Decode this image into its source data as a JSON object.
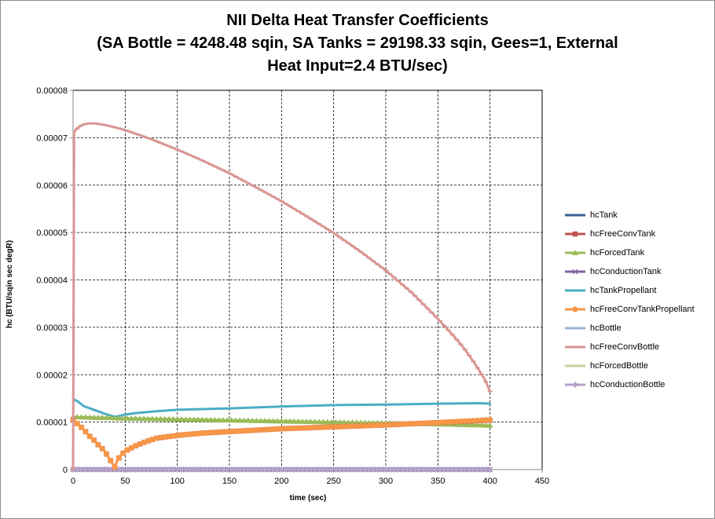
{
  "chart_data": {
    "type": "line",
    "title": [
      "NII Delta Heat Transfer Coefficients",
      "(SA Bottle = 4248.48 sqin, SA Tanks = 29198.33 sqin, Gees=1, External",
      "Heat Input=2.4 BTU/sec)"
    ],
    "xlabel": "time (sec)",
    "ylabel": "hc (BTU/sqin sec degR)",
    "xlim": [
      0,
      450
    ],
    "ylim": [
      0,
      8e-05
    ],
    "xticks": [
      0,
      50,
      100,
      150,
      200,
      250,
      300,
      350,
      400,
      450
    ],
    "yticks": [
      0,
      1e-05,
      2e-05,
      3e-05,
      4e-05,
      5e-05,
      6e-05,
      7e-05,
      8e-05
    ],
    "ytick_labels": [
      "0",
      "0.00001",
      "0.00002",
      "0.00003",
      "0.00004",
      "0.00005",
      "0.00006",
      "0.00007",
      "0.00008"
    ],
    "grid": true,
    "legend_position": "right",
    "series": [
      {
        "name": "hcTank",
        "color": "#376092",
        "marker": "none",
        "x": [
          0,
          400
        ],
        "y": [
          0,
          0
        ]
      },
      {
        "name": "hcFreeConvTank",
        "color": "#c0504d",
        "marker": "square",
        "x": [
          0,
          5,
          10,
          15,
          20,
          25,
          30,
          35,
          38,
          40,
          42,
          45,
          50,
          60,
          70,
          80,
          100,
          125,
          150,
          175,
          200,
          250,
          300,
          350,
          400
        ],
        "y": [
          1.05e-05,
          9.5e-06,
          8.5e-06,
          7.2e-06,
          6.2e-06,
          5e-06,
          4e-06,
          2.2e-06,
          1.2e-06,
          5e-07,
          1.7e-06,
          2.8e-06,
          3.9e-06,
          5e-06,
          5.9e-06,
          6.6e-06,
          7.2e-06,
          7.7e-06,
          8e-06,
          8.3e-06,
          8.6e-06,
          9e-06,
          9.4e-06,
          9.9e-06,
          1.04e-05
        ]
      },
      {
        "name": "hcForcedTank",
        "color": "#9bbb59",
        "marker": "triangle",
        "x": [
          0,
          50,
          100,
          150,
          200,
          250,
          300,
          350,
          400
        ],
        "y": [
          1.11e-05,
          1.08e-05,
          1.06e-05,
          1.04e-05,
          1.02e-05,
          1e-05,
          9.8e-06,
          9.6e-06,
          9.3e-06
        ]
      },
      {
        "name": "hcConductionTank",
        "color": "#8064a2",
        "marker": "x",
        "x": [
          0,
          400
        ],
        "y": [
          0,
          0
        ]
      },
      {
        "name": "hcTankPropellant",
        "color": "#4bacc6",
        "marker": "none",
        "x": [
          0,
          5,
          10,
          20,
          30,
          40,
          50,
          60,
          80,
          100,
          150,
          200,
          250,
          300,
          350,
          390,
          400
        ],
        "y": [
          1.49e-05,
          1.43e-05,
          1.34e-05,
          1.26e-05,
          1.18e-05,
          1.11e-05,
          1.16e-05,
          1.19e-05,
          1.23e-05,
          1.26e-05,
          1.29e-05,
          1.33e-05,
          1.36e-05,
          1.37e-05,
          1.39e-05,
          1.4e-05,
          1.39e-05
        ]
      },
      {
        "name": "hcFreeConvTankPropellant",
        "color": "#f79646",
        "marker": "circle",
        "x": [
          0,
          5,
          10,
          15,
          20,
          25,
          30,
          35,
          38,
          40,
          42,
          45,
          50,
          60,
          70,
          80,
          100,
          125,
          150,
          175,
          200,
          250,
          300,
          350,
          400
        ],
        "y": [
          1.05e-05,
          9.5e-06,
          8.5e-06,
          7.2e-06,
          6.2e-06,
          5e-06,
          4e-06,
          2.2e-06,
          1.2e-06,
          5e-07,
          1.7e-06,
          2.8e-06,
          3.9e-06,
          5e-06,
          5.9e-06,
          6.6e-06,
          7.2e-06,
          7.7e-06,
          8e-06,
          8.3e-06,
          8.6e-06,
          9e-06,
          9.4e-06,
          9.9e-06,
          1.05e-05
        ]
      },
      {
        "name": "hcBottle",
        "color": "#95b3d7",
        "marker": "none",
        "x": [
          0,
          400
        ],
        "y": [
          0,
          0
        ]
      },
      {
        "name": "hcFreeConvBottle",
        "color": "#d99694",
        "marker": "dash",
        "x": [
          0,
          1,
          5,
          10,
          15,
          20,
          25,
          30,
          40,
          50,
          75,
          100,
          125,
          150,
          175,
          200,
          225,
          250,
          275,
          300,
          325,
          350,
          365,
          375,
          385,
          395,
          400
        ],
        "y": [
          0,
          7.12e-05,
          7.22e-05,
          7.28e-05,
          7.3e-05,
          7.3e-05,
          7.29e-05,
          7.27e-05,
          7.22e-05,
          7.16e-05,
          6.97e-05,
          6.75e-05,
          6.51e-05,
          6.25e-05,
          5.96e-05,
          5.66e-05,
          5.33e-05,
          4.99e-05,
          4.61e-05,
          4.2e-05,
          3.73e-05,
          3.18e-05,
          2.82e-05,
          2.56e-05,
          2.25e-05,
          1.9e-05,
          1.65e-05
        ]
      },
      {
        "name": "hcForcedBottle",
        "color": "#c3d69b",
        "marker": "none",
        "x": [
          0,
          400
        ],
        "y": [
          0,
          0
        ]
      },
      {
        "name": "hcConductionBottle",
        "color": "#b3a2c7",
        "marker": "diamond",
        "x": [
          0,
          50,
          100,
          150,
          200,
          250,
          300,
          350,
          400
        ],
        "y": [
          0,
          0,
          0,
          0,
          0,
          0,
          0,
          0,
          0
        ]
      }
    ]
  }
}
